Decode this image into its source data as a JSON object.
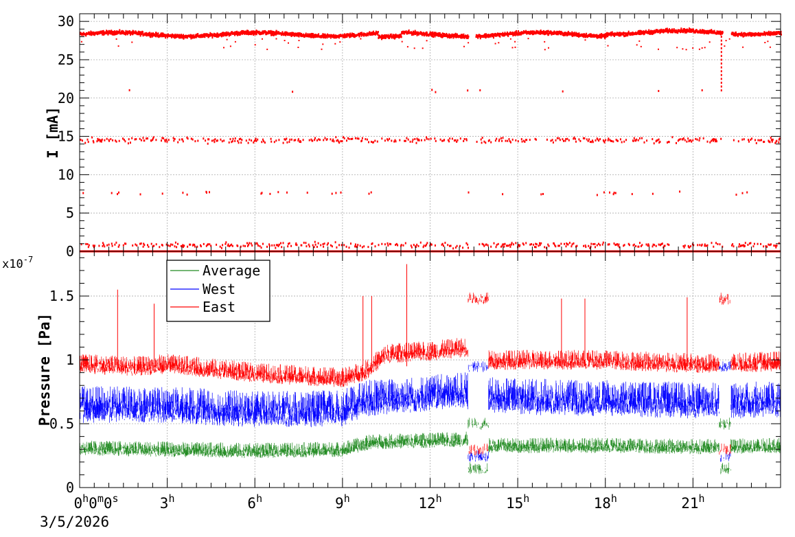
{
  "chart_data": [
    {
      "type": "scatter",
      "ylabel": "I [mA]",
      "ylim": [
        0,
        31
      ],
      "yticks": [
        0,
        5,
        10,
        15,
        20,
        25,
        30
      ],
      "xlim_hours": [
        0,
        24
      ],
      "grid": true,
      "series": [
        {
          "color": "#ff0000",
          "bands": [
            {
              "level": 28.3,
              "spread": 0.35,
              "density": "continuous"
            },
            {
              "level": 14.5,
              "spread": 0.5,
              "density": "frequent"
            },
            {
              "level": 0.8,
              "spread": 0.5,
              "density": "frequent"
            },
            {
              "level": 7.6,
              "spread": 0.4,
              "density": "sparse"
            },
            {
              "level": 21.0,
              "spread": 0.3,
              "density": "rare"
            }
          ],
          "baseline_value": 0
        }
      ]
    },
    {
      "type": "line",
      "ylabel": "Pressure [Pa]",
      "yscale_label": "x10",
      "yscale_exp": "-7",
      "ylim": [
        0,
        1.85
      ],
      "yticks": [
        0,
        0.5,
        1,
        1.5
      ],
      "ytick_labels": [
        "0",
        "0.5",
        "1",
        "1.5"
      ],
      "xlim_hours": [
        0,
        24
      ],
      "grid": true,
      "legend_position": "top-left",
      "series": [
        {
          "name": "Average",
          "color": "#228b22",
          "baseline": [
            [
              0,
              0.31
            ],
            [
              6,
              0.29
            ],
            [
              9,
              0.3
            ],
            [
              10,
              0.36
            ],
            [
              12,
              0.37
            ],
            [
              13.2,
              0.38
            ],
            [
              14,
              0.33
            ],
            [
              18,
              0.33
            ],
            [
              21.5,
              0.32
            ],
            [
              24,
              0.33
            ]
          ],
          "noise": 0.1
        },
        {
          "name": "West",
          "color": "#0000ff",
          "baseline": [
            [
              0,
              0.65
            ],
            [
              3,
              0.65
            ],
            [
              6,
              0.61
            ],
            [
              9,
              0.62
            ],
            [
              9.8,
              0.7
            ],
            [
              11,
              0.72
            ],
            [
              13.2,
              0.76
            ],
            [
              14,
              0.72
            ],
            [
              18,
              0.7
            ],
            [
              21.5,
              0.68
            ],
            [
              24,
              0.69
            ]
          ],
          "noise": 0.24
        },
        {
          "name": "East",
          "color": "#ff0000",
          "baseline": [
            [
              0,
              0.97
            ],
            [
              2,
              0.95
            ],
            [
              3,
              0.97
            ],
            [
              6,
              0.9
            ],
            [
              9,
              0.86
            ],
            [
              9.8,
              0.92
            ],
            [
              10.5,
              1.05
            ],
            [
              12,
              1.07
            ],
            [
              13.2,
              1.1
            ],
            [
              14,
              1.0
            ],
            [
              18,
              1.0
            ],
            [
              21.5,
              0.97
            ],
            [
              24,
              0.99
            ]
          ],
          "noise": 0.13
        }
      ],
      "spikes_east": [
        [
          1.3,
          1.55
        ],
        [
          2.55,
          1.44
        ],
        [
          9.7,
          1.5
        ],
        [
          10.0,
          1.5
        ],
        [
          11.2,
          1.75
        ],
        [
          16.5,
          1.48
        ],
        [
          17.3,
          1.48
        ],
        [
          20.8,
          1.49
        ]
      ]
    }
  ],
  "x_axis": {
    "tick_labels": [
      {
        "hours": 0,
        "base": "0",
        "sup": "h",
        "rest": "0",
        "rest_sup": "m",
        "rest2": "0",
        "rest2_sup": "s"
      },
      {
        "hours": 3,
        "base": "3",
        "sup": "h"
      },
      {
        "hours": 6,
        "base": "6",
        "sup": "h"
      },
      {
        "hours": 9,
        "base": "9",
        "sup": "h"
      },
      {
        "hours": 12,
        "base": "12",
        "sup": "h"
      },
      {
        "hours": 15,
        "base": "15",
        "sup": "h"
      },
      {
        "hours": 18,
        "base": "18",
        "sup": "h"
      },
      {
        "hours": 21,
        "base": "21",
        "sup": "h"
      }
    ],
    "date": "3/5/2026"
  }
}
